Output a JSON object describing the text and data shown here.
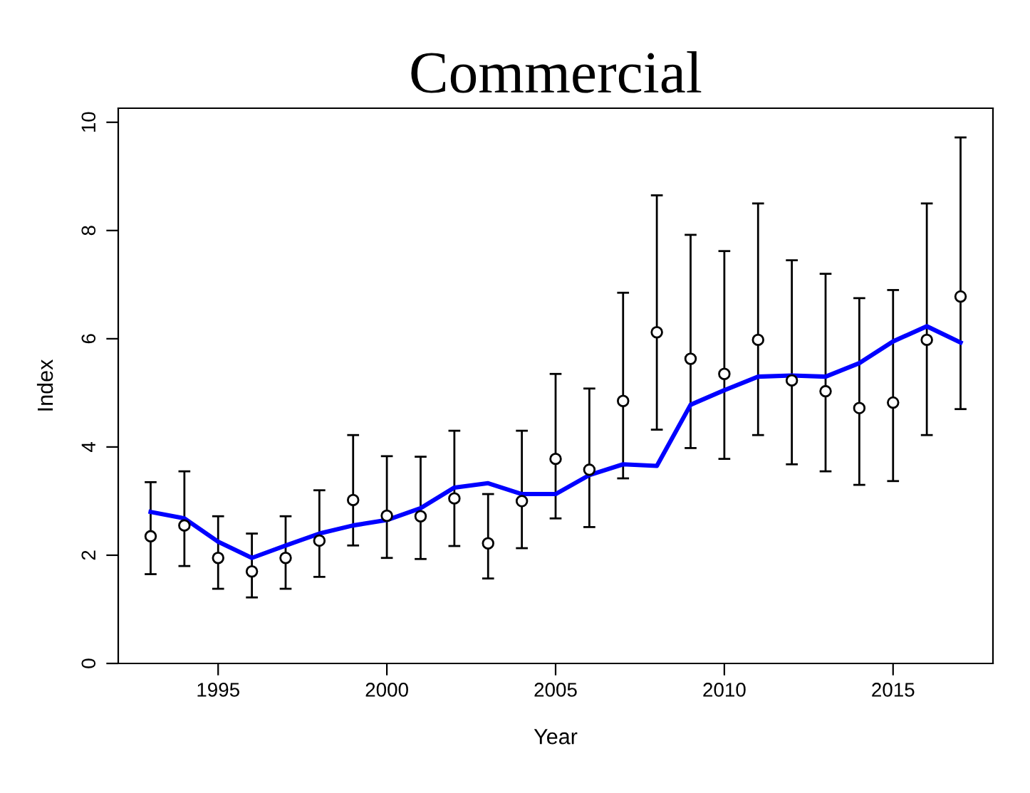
{
  "chart_data": {
    "type": "scatter",
    "title": "Commercial",
    "xlabel": "Year",
    "ylabel": "Index",
    "x": [
      1993,
      1994,
      1995,
      1996,
      1997,
      1998,
      1999,
      2000,
      2001,
      2002,
      2003,
      2004,
      2005,
      2006,
      2007,
      2008,
      2009,
      2010,
      2011,
      2012,
      2013,
      2014,
      2015,
      2016,
      2017
    ],
    "series": [
      {
        "color": "#000000",
        "marker": "circle",
        "values": [
          2.35,
          2.55,
          1.95,
          1.7,
          1.95,
          2.27,
          3.02,
          2.73,
          2.72,
          3.05,
          2.22,
          3.0,
          3.78,
          3.58,
          4.85,
          6.12,
          5.63,
          5.35,
          5.98,
          5.23,
          5.03,
          4.72,
          4.82,
          5.98,
          6.78
        ],
        "errors": [
          [
            1.65,
            3.35
          ],
          [
            1.8,
            3.55
          ],
          [
            1.38,
            2.72
          ],
          [
            1.22,
            2.4
          ],
          [
            1.38,
            2.72
          ],
          [
            1.6,
            3.2
          ],
          [
            2.18,
            4.22
          ],
          [
            1.95,
            3.83
          ],
          [
            1.93,
            3.82
          ],
          [
            2.17,
            4.3
          ],
          [
            1.57,
            3.13
          ],
          [
            2.13,
            4.3
          ],
          [
            2.68,
            5.35
          ],
          [
            2.52,
            5.08
          ],
          [
            3.42,
            6.85
          ],
          [
            4.32,
            8.65
          ],
          [
            3.98,
            7.92
          ],
          [
            3.78,
            7.62
          ],
          [
            4.22,
            8.5
          ],
          [
            3.68,
            7.45
          ],
          [
            3.55,
            7.2
          ],
          [
            3.3,
            6.75
          ],
          [
            3.37,
            6.9
          ],
          [
            4.22,
            8.5
          ],
          [
            4.7,
            9.72
          ]
        ]
      },
      {
        "type": "line",
        "color": "#0000ff",
        "line_style": "solid",
        "values": [
          2.8,
          2.68,
          2.25,
          1.95,
          2.18,
          2.4,
          2.55,
          2.65,
          2.87,
          3.25,
          3.33,
          3.13,
          3.13,
          3.48,
          3.68,
          3.65,
          4.78,
          5.05,
          5.3,
          5.32,
          5.3,
          5.55,
          5.95,
          6.23,
          5.93
        ]
      }
    ],
    "xlim": [
      1992.04,
      2017.96
    ],
    "xticks": [
      1995,
      2000,
      2005,
      2010,
      2015
    ],
    "ylim": [
      0,
      10.26
    ],
    "yticks": [
      0,
      2,
      4,
      6,
      8,
      10
    ],
    "grid": false,
    "legend": false
  }
}
